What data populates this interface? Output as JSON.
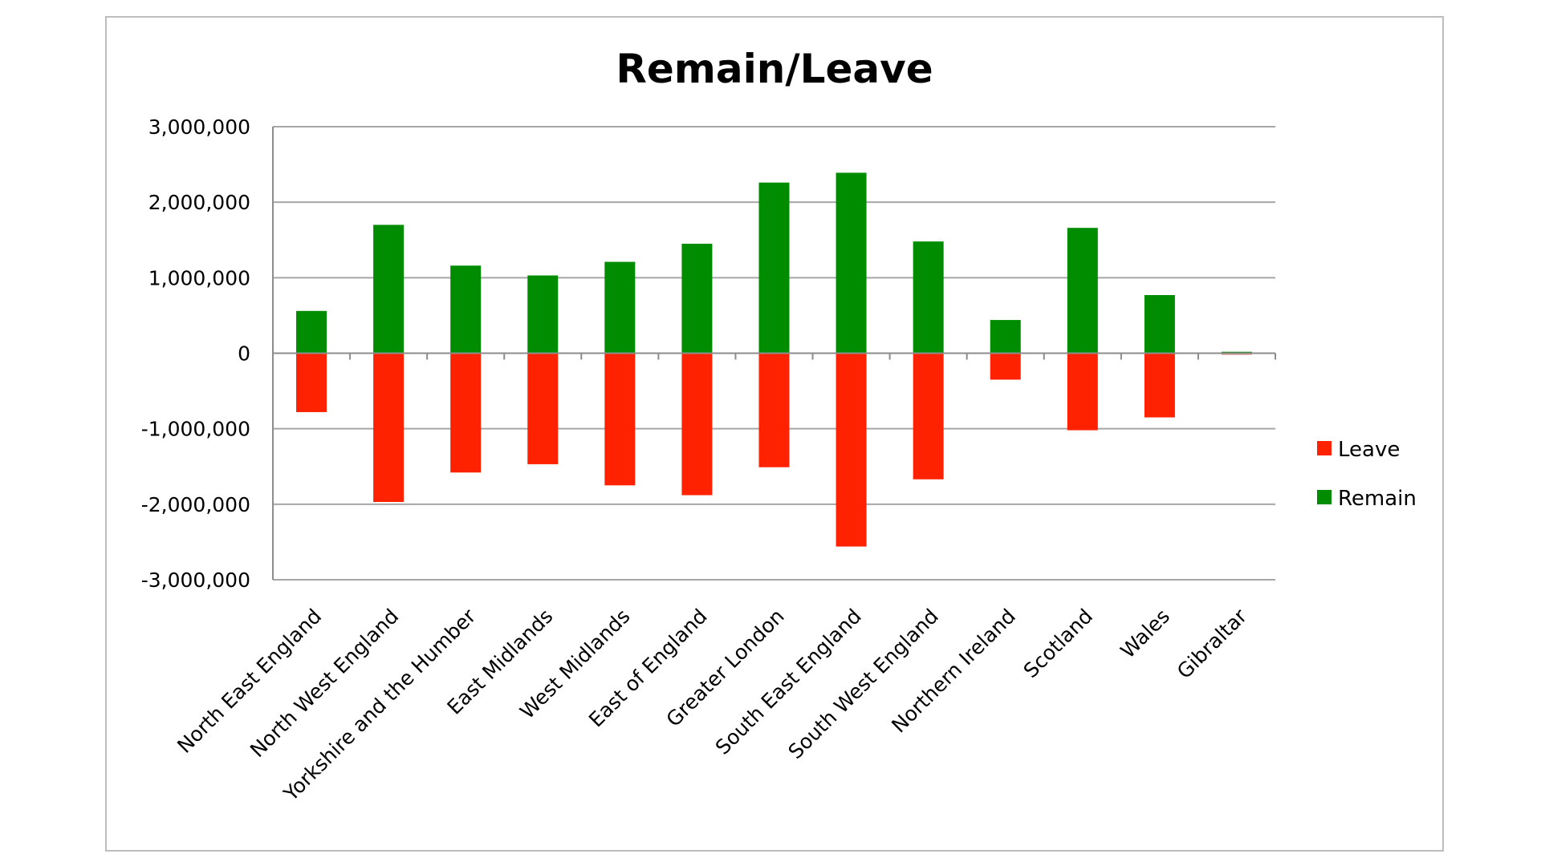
{
  "chart_data": {
    "type": "bar",
    "stacked": true,
    "title": "Remain/Leave",
    "xlabel": "",
    "ylabel": "",
    "ylim": [
      -3000000,
      3000000
    ],
    "yticks": [
      3000000,
      2000000,
      1000000,
      0,
      -1000000,
      -2000000,
      -3000000
    ],
    "ytick_labels": [
      "3,000,000",
      "2,000,000",
      "1,000,000",
      "0",
      "-1,000,000",
      "-2,000,000",
      "-3,000,000"
    ],
    "grid": true,
    "legend_position": "right",
    "categories": [
      "North East England",
      "North West England",
      "Yorkshire and the Humber",
      "East Midlands",
      "West Midlands",
      "East of England",
      "Greater London",
      "South East England",
      "South West England",
      "Northern Ireland",
      "Scotland",
      "Wales",
      "Gibraltar"
    ],
    "series": [
      {
        "name": "Leave",
        "color": "#ff2200",
        "values": [
          -780000,
          -1970000,
          -1580000,
          -1470000,
          -1750000,
          -1880000,
          -1510000,
          -2560000,
          -1670000,
          -350000,
          -1020000,
          -850000,
          -800
        ]
      },
      {
        "name": "Remain",
        "color": "#008c00",
        "values": [
          560000,
          1700000,
          1160000,
          1030000,
          1210000,
          1450000,
          2260000,
          2390000,
          1480000,
          440000,
          1660000,
          770000,
          19000
        ]
      }
    ]
  }
}
